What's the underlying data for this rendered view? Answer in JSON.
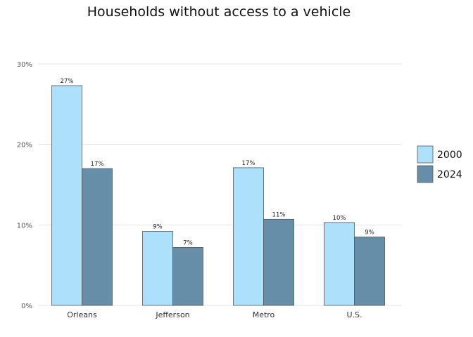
{
  "chart_data": {
    "type": "bar",
    "title": "Households without access to a vehicle",
    "categories": [
      "Orleans",
      "Jefferson",
      "Metro",
      "U.S."
    ],
    "series": [
      {
        "name": "2000",
        "color": "#ade0fa",
        "values": [
          27.3,
          9.2,
          17.1,
          10.3
        ],
        "labels": [
          "27%",
          "9%",
          "17%",
          "10%"
        ]
      },
      {
        "name": "2024",
        "color": "#678ea8",
        "values": [
          17.0,
          7.2,
          10.7,
          8.5
        ],
        "labels": [
          "17%",
          "7%",
          "11%",
          "9%"
        ]
      }
    ],
    "yticks": [
      0,
      10,
      20,
      30
    ],
    "ytick_labels": [
      "0%",
      "10%",
      "20%",
      "30%"
    ],
    "ylim": [
      0,
      30
    ],
    "xlabel": "",
    "ylabel": "",
    "grid": true,
    "legend_position": "right"
  }
}
